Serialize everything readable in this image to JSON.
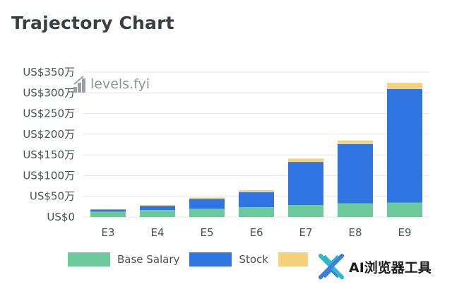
{
  "title": "Trajectory Chart",
  "watermark": {
    "text": "AI浏览器工具",
    "icon": "x-cross-logo-icon",
    "color_teal": "#2fb8c9",
    "color_blue": "#3b7de0"
  },
  "levels_logo": {
    "text": "levels.fyi",
    "icon": "levels-stairs-icon",
    "color": "#8e9399"
  },
  "legend": [
    {
      "label": "Base Salary",
      "color": "#6dc99b"
    },
    {
      "label": "Stock",
      "color": "#2f74e0"
    },
    {
      "label": "",
      "color": "#f4d27c"
    }
  ],
  "chart_data": {
    "type": "bar",
    "stacked": true,
    "categories": [
      "E3",
      "E4",
      "E5",
      "E6",
      "E7",
      "E8",
      "E9"
    ],
    "series": [
      {
        "name": "Base Salary",
        "color": "#6dc99b",
        "values": [
          13,
          17,
          20,
          24,
          29,
          33,
          35
        ]
      },
      {
        "name": "Stock",
        "color": "#2f74e0",
        "values": [
          5,
          10,
          24,
          36,
          104,
          143,
          274
        ]
      },
      {
        "name": "",
        "color": "#f4d27c",
        "values": [
          1,
          2,
          3,
          5,
          8,
          9,
          15
        ]
      }
    ],
    "ylim": [
      0,
      350
    ],
    "yticks": [
      0,
      50,
      100,
      150,
      200,
      250,
      300,
      350
    ],
    "ytick_labels": [
      "US$0",
      "US$50万",
      "US$100万",
      "US$150万",
      "US$200万",
      "US$250万",
      "US$300万",
      "US$350万"
    ],
    "grid": true,
    "legend_position": "bottom"
  }
}
